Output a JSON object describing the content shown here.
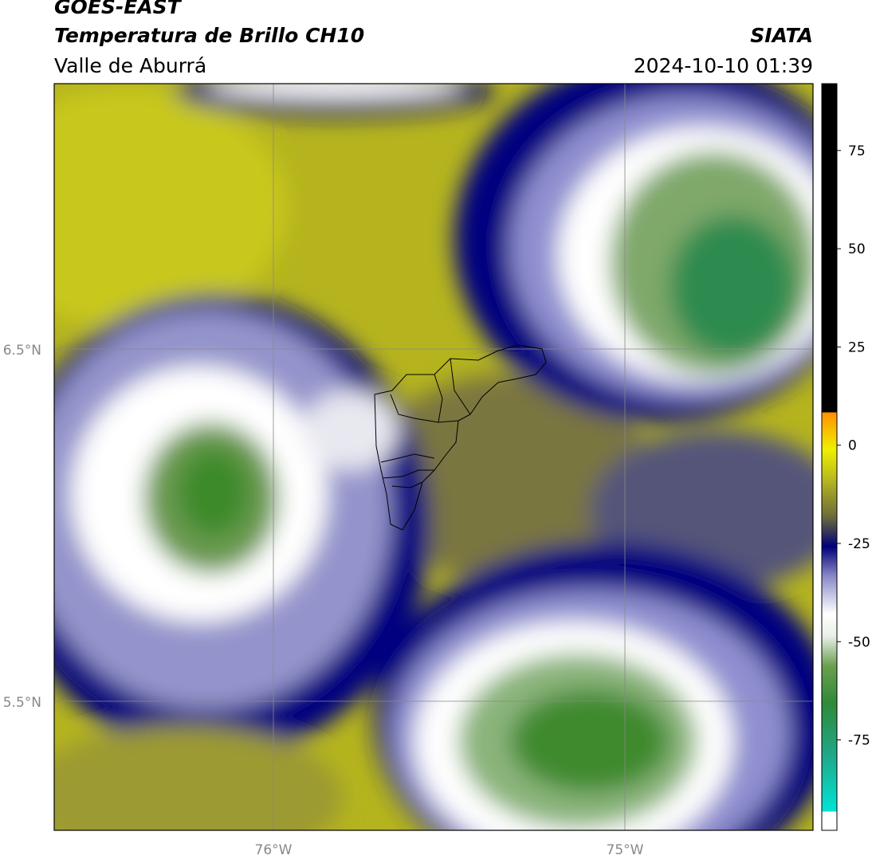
{
  "header": {
    "title": "GOES-EAST",
    "subtitle": "Temperatura de Brillo CH10",
    "region": "Valle de Aburrá",
    "source": "SIATA",
    "datetime": "2024-10-10 01:39"
  },
  "map": {
    "lat_labels": [
      "6.5°N",
      "5.5°N"
    ],
    "lon_labels": [
      "76°W",
      "75°W"
    ]
  },
  "colorbar": {
    "lim": [
      -98,
      92
    ],
    "ticks": [
      75,
      50,
      25,
      0,
      -25,
      -50,
      -75
    ]
  }
}
